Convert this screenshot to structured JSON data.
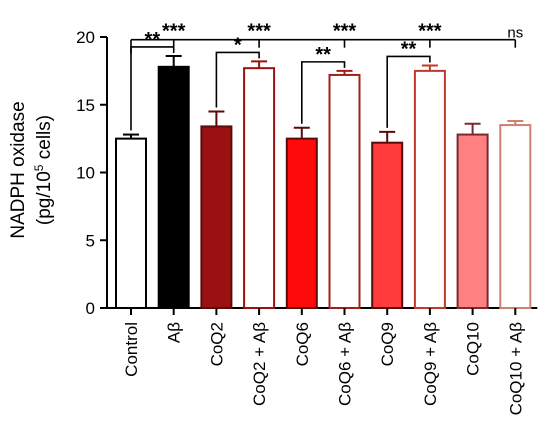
{
  "chart_data": {
    "type": "bar",
    "ylabel_line1": "NADPH oxidase",
    "ylabel_line2_prefix": "(pg/10",
    "ylabel_line2_sup": "5",
    "ylabel_line2_suffix": " cells)",
    "ylim": [
      0,
      20
    ],
    "yticks": [
      "0",
      "5",
      "10",
      "15",
      "20"
    ],
    "categories": [
      "Control",
      "Aβ",
      "CoQ2",
      "CoQ2 + Aβ",
      "CoQ6",
      "CoQ6 + Aβ",
      "CoQ9",
      "CoQ9 + Aβ",
      "CoQ10",
      "CoQ10 + Aβ"
    ],
    "values": [
      12.5,
      17.8,
      13.4,
      17.7,
      12.5,
      17.2,
      12.2,
      17.5,
      12.8,
      13.5
    ],
    "errors": [
      0.3,
      0.8,
      1.1,
      0.5,
      0.8,
      0.3,
      0.8,
      0.4,
      0.8,
      0.3
    ],
    "fills": [
      "#ffffff",
      "#000000",
      "#9b1111",
      "#ffffff",
      "#ff0a0a",
      "#ffffff",
      "#ff3b3b",
      "#ffffff",
      "#ff8080",
      "#ffffff"
    ],
    "strokes": [
      "#000000",
      "#000000",
      "#5a0a0a",
      "#9b1111",
      "#5a0a0a",
      "#a0201a",
      "#5a0a0a",
      "#c0392b",
      "#7a2a2a",
      "#d08070"
    ],
    "comparisons": [
      {
        "from": 0,
        "to": 1,
        "label": "**"
      },
      {
        "from": 2,
        "to": 3,
        "label": "*"
      },
      {
        "from": 4,
        "to": 5,
        "label": "**"
      },
      {
        "from": 6,
        "to": 7,
        "label": "**"
      }
    ],
    "top_comparisons": [
      "***",
      "***",
      "***",
      "***",
      "ns"
    ]
  }
}
